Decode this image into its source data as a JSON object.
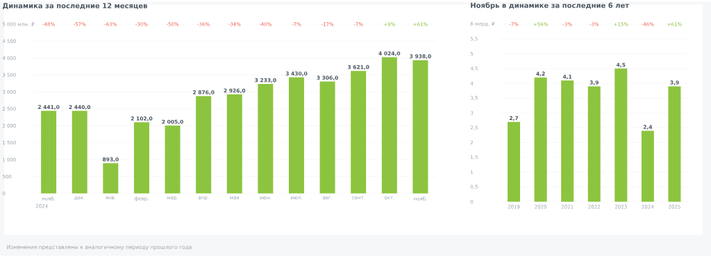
{
  "chart_data": [
    {
      "type": "bar",
      "title": "Динамика за последние 12 месяцев",
      "categories": [
        "нояб.",
        "дек.",
        "янв.",
        "февр.",
        "мар.",
        "апр.",
        "мая",
        "июн.",
        "июл.",
        "авг.",
        "сент.",
        "окт.",
        "нояб."
      ],
      "values": [
        2441,
        2440,
        893,
        2102,
        2005,
        2876,
        2926,
        3233,
        3430,
        3306,
        3621,
        4024,
        3938
      ],
      "value_labels": [
        "2 441,0",
        "2 440,0",
        "893,0",
        "2 102,0",
        "2 005,0",
        "2 876,0",
        "2 926,0",
        "3 233,0",
        "3 430,0",
        "3 306,0",
        "3 621,0",
        "4 024,0",
        "3 938,0"
      ],
      "color": "#8cc43f",
      "ylim": [
        0,
        5000
      ],
      "yticks": [
        {
          "value": 0,
          "label": "0"
        },
        {
          "value": 500,
          "label": "500"
        },
        {
          "value": 1000,
          "label": "1 000"
        },
        {
          "value": 1500,
          "label": "1 500"
        },
        {
          "value": 2000,
          "label": "2 000"
        },
        {
          "value": 2500,
          "label": "2 500"
        },
        {
          "value": 3000,
          "label": "3 000"
        },
        {
          "value": 3500,
          "label": "3 500"
        },
        {
          "value": 4000,
          "label": "4 000"
        },
        {
          "value": 4500,
          "label": "4 500"
        },
        {
          "value": 5000,
          "label": "5 000 млн. ₽"
        }
      ],
      "grid": "y",
      "annotations": [
        "-48%",
        "-57%",
        "-63%",
        "-30%",
        "-50%",
        "-36%",
        "-34%",
        "-40%",
        "-7%",
        "-17%",
        "-7%",
        "+9%",
        "+61%",
        "2024",
        "Изменения представлены к аналогичному периоду прошлого года"
      ]
    },
    {
      "type": "bar",
      "title": "Ноябрь в динамике за последние 6 лет",
      "categories": [
        "2019",
        "2020",
        "2021",
        "2022",
        "2023",
        "2024",
        "2025"
      ],
      "values": [
        2.7,
        4.2,
        4.1,
        3.9,
        4.5,
        2.4,
        3.9
      ],
      "value_labels": [
        "2,7",
        "4,2",
        "4,1",
        "3,9",
        "4,5",
        "2,4",
        "3,9"
      ],
      "color": "#8cc43f",
      "ylim": [
        0,
        6
      ],
      "yticks": [
        {
          "value": 0,
          "label": "0"
        },
        {
          "value": 0.5,
          "label": "0,5"
        },
        {
          "value": 1,
          "label": "1"
        },
        {
          "value": 1.5,
          "label": "1,5"
        },
        {
          "value": 2,
          "label": "2"
        },
        {
          "value": 2.5,
          "label": "2,5"
        },
        {
          "value": 3,
          "label": "3"
        },
        {
          "value": 3.5,
          "label": "3,5"
        },
        {
          "value": 4,
          "label": "4"
        },
        {
          "value": 4.5,
          "label": "4,5"
        },
        {
          "value": 5,
          "label": "5"
        },
        {
          "value": 5.5,
          "label": "5,5"
        },
        {
          "value": 6,
          "label": "6 млрд. ₽"
        }
      ],
      "grid": "y",
      "annotations": [
        "-7%",
        "+56%",
        "-3%",
        "-3%",
        "+15%",
        "-46%",
        "+61%"
      ]
    }
  ]
}
